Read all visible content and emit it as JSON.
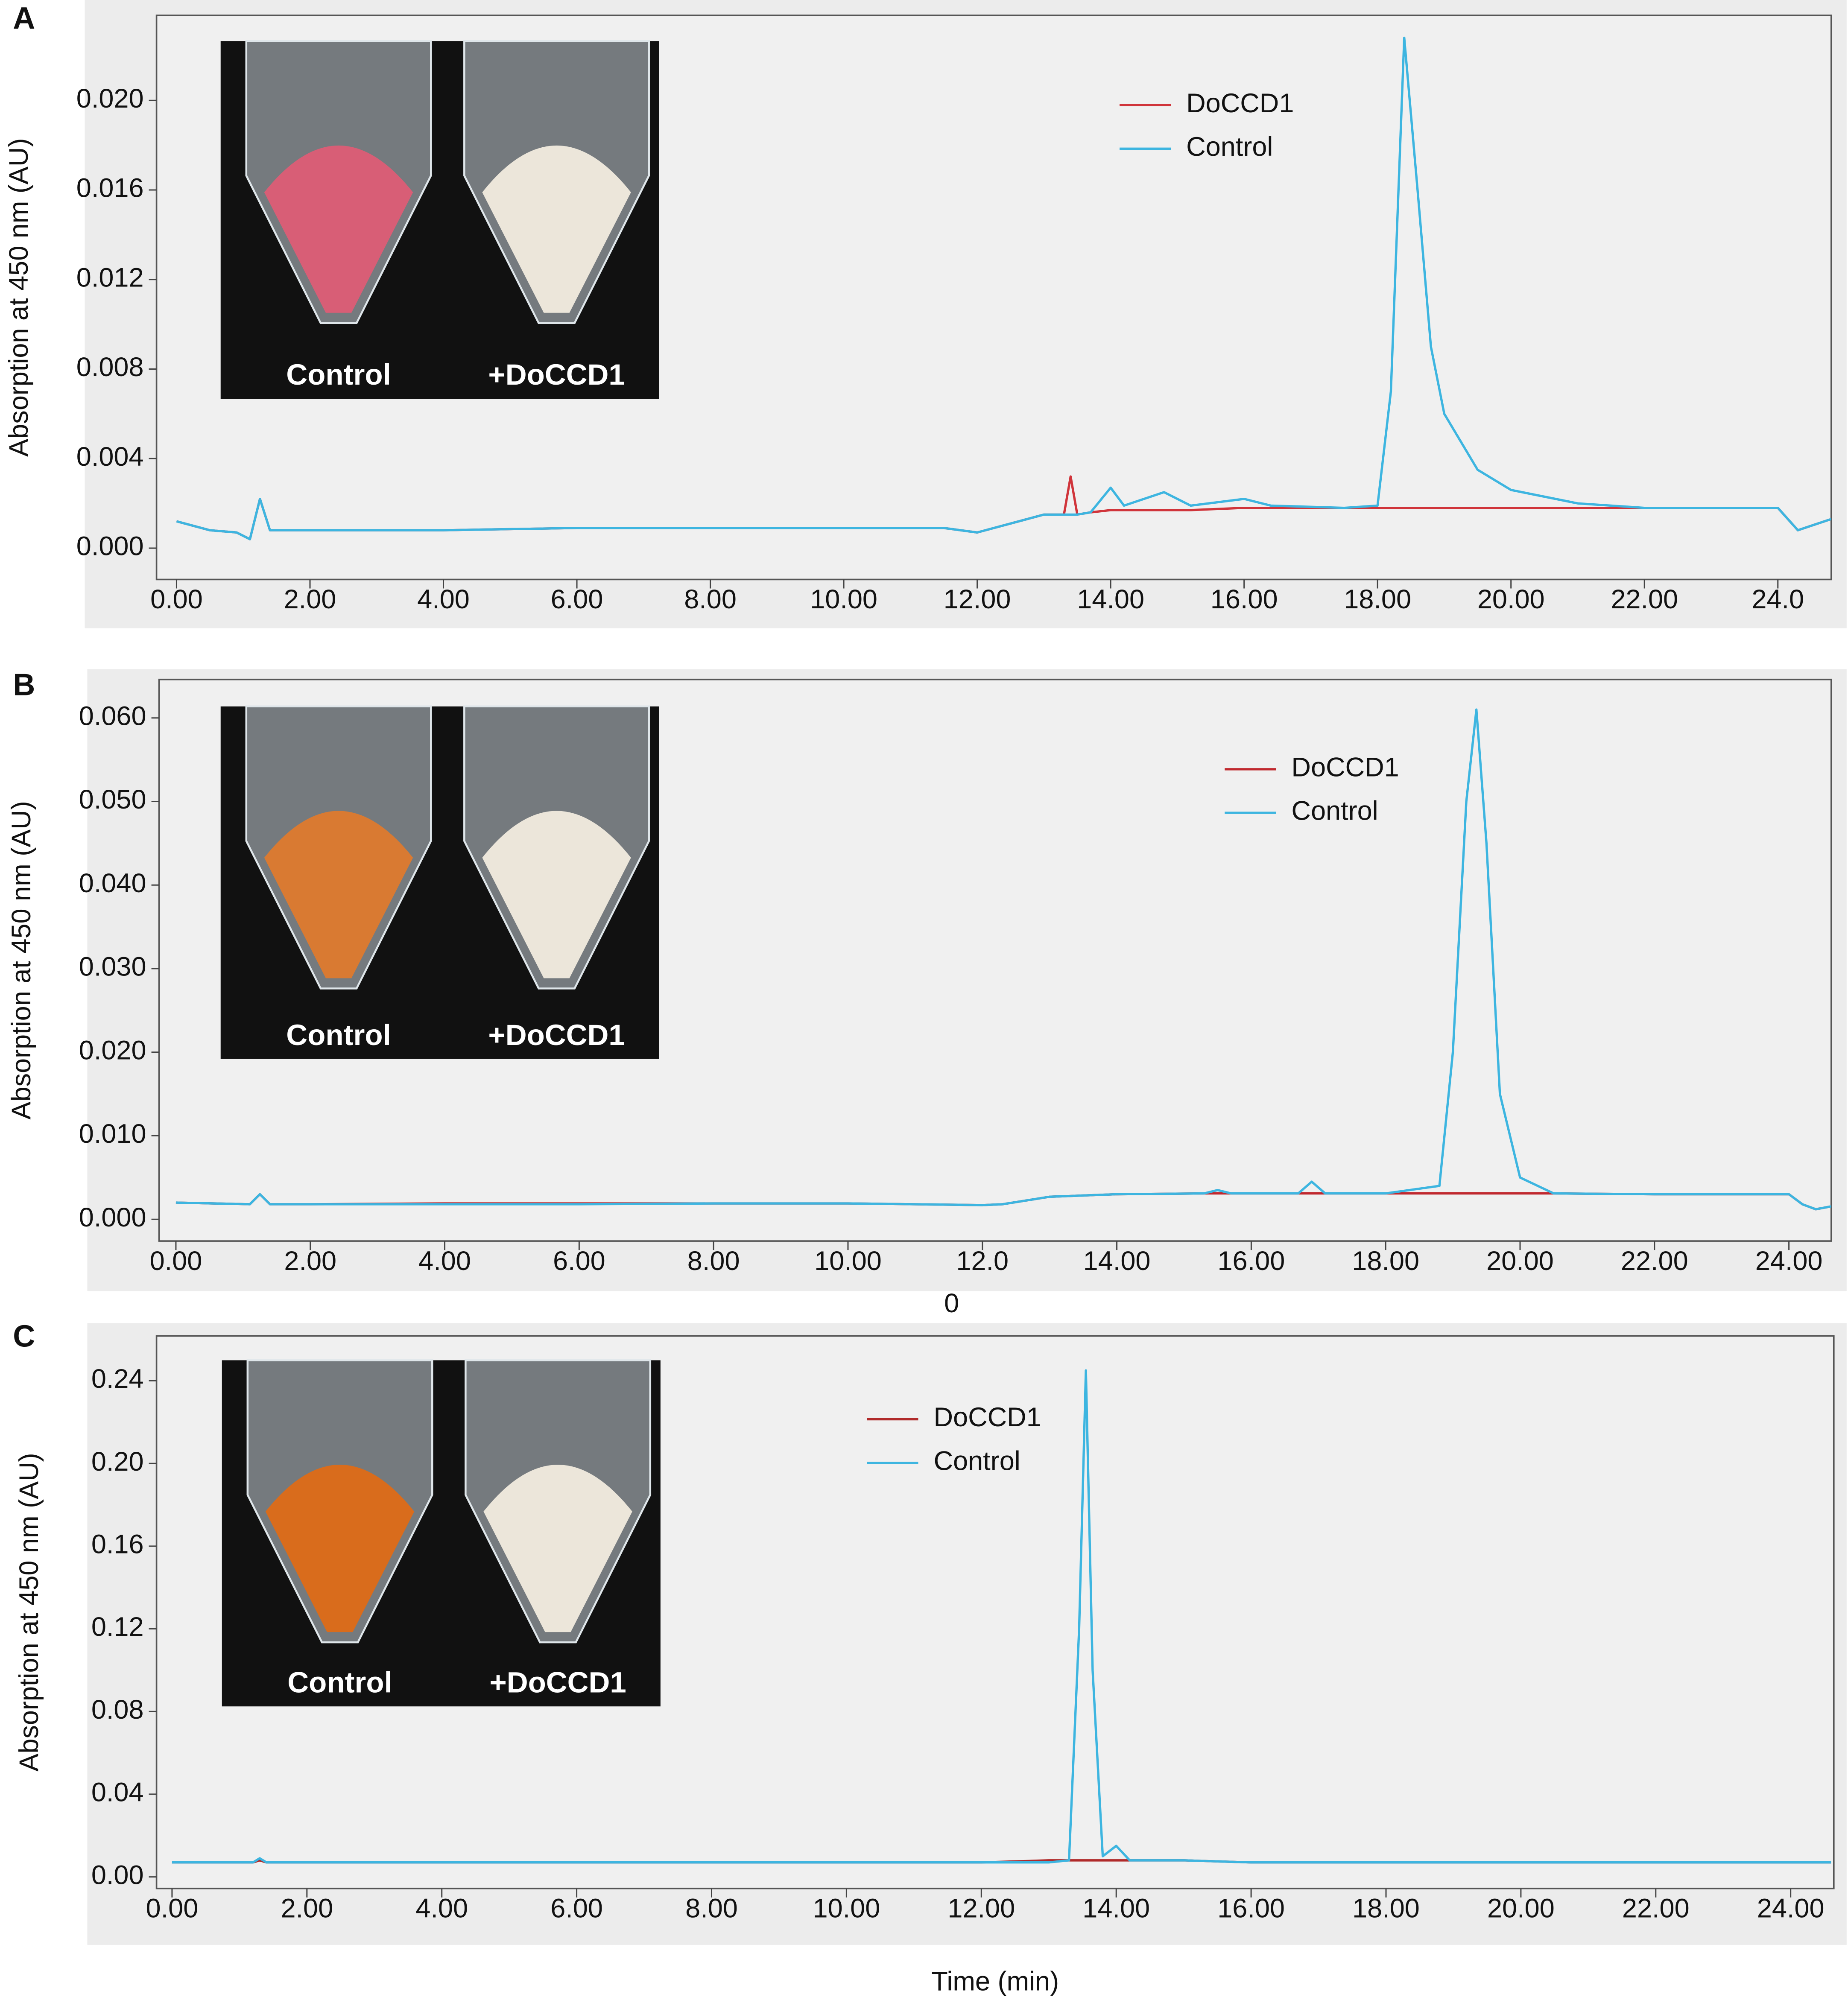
{
  "chart_data": [
    {
      "type": "line",
      "panel_label": "A",
      "y_label": "Absorption at 450 nm (AU)",
      "inset_labels": [
        "Control",
        "+DoCCD1"
      ],
      "xlim": [
        -0.3,
        24.8
      ],
      "ylim": [
        -0.0014,
        0.0238
      ],
      "xticks": [
        {
          "value": 0,
          "label": "0.00"
        },
        {
          "value": 2,
          "label": "2.00"
        },
        {
          "value": 4,
          "label": "4.00"
        },
        {
          "value": 6,
          "label": "6.00"
        },
        {
          "value": 8,
          "label": "8.00"
        },
        {
          "value": 10,
          "label": "10.00"
        },
        {
          "value": 12,
          "label": "12.00"
        },
        {
          "value": 14,
          "label": "14.00"
        },
        {
          "value": 16,
          "label": "16.00"
        },
        {
          "value": 18,
          "label": "18.00"
        },
        {
          "value": 20,
          "label": "20.00"
        },
        {
          "value": 22,
          "label": "22.00"
        },
        {
          "value": 24,
          "label": "24.0"
        }
      ],
      "yticks": [
        {
          "value": 0,
          "label": "0.000"
        },
        {
          "value": 0.004,
          "label": "0.004"
        },
        {
          "value": 0.008,
          "label": "0.008"
        },
        {
          "value": 0.012,
          "label": "0.012"
        },
        {
          "value": 0.016,
          "label": "0.016"
        },
        {
          "value": 0.02,
          "label": "0.020"
        }
      ],
      "x": [
        0,
        0.5,
        0.9,
        1.1,
        1.25,
        1.4,
        2,
        4,
        6,
        8,
        10,
        11.5,
        12,
        12.5,
        13,
        13.3,
        13.4,
        13.5,
        13.7,
        14.0,
        14.2,
        14.5,
        14.8,
        15.2,
        16.0,
        16.4,
        17.5,
        18.0,
        18.2,
        18.4,
        18.6,
        18.8,
        19.0,
        19.5,
        20,
        21,
        22,
        23,
        24.0,
        24.3,
        24.5,
        24.8
      ],
      "series": [
        {
          "name": "DoCCD1",
          "color": "#d0343a",
          "values": [
            0.0012,
            0.0008,
            0.0007,
            0.0004,
            0.0022,
            0.0008,
            0.0008,
            0.0008,
            0.0009,
            0.0009,
            0.0009,
            0.0009,
            0.0007,
            0.0011,
            0.0015,
            0.0015,
            0.0032,
            0.0015,
            0.0016,
            0.0017,
            0.0017,
            0.0017,
            0.0017,
            0.0017,
            0.0018,
            0.0018,
            0.0018,
            0.0018,
            0.0018,
            0.0018,
            0.0018,
            0.0018,
            0.0018,
            0.0018,
            0.0018,
            0.0018,
            0.0018,
            0.0018,
            0.0018,
            0.0008,
            0.001,
            0.0013
          ]
        },
        {
          "name": "Control",
          "color": "#3db5e0",
          "values": [
            0.0012,
            0.0008,
            0.0007,
            0.0004,
            0.0022,
            0.0008,
            0.0008,
            0.0008,
            0.0009,
            0.0009,
            0.0009,
            0.0009,
            0.0007,
            0.0011,
            0.0015,
            0.0015,
            0.0015,
            0.0015,
            0.0016,
            0.0027,
            0.0019,
            0.0022,
            0.0025,
            0.0019,
            0.0022,
            0.0019,
            0.0018,
            0.0019,
            0.007,
            0.0228,
            0.016,
            0.009,
            0.006,
            0.0035,
            0.0026,
            0.002,
            0.0018,
            0.0018,
            0.0018,
            0.0008,
            0.001,
            0.0013
          ]
        }
      ]
    },
    {
      "type": "line",
      "panel_label": "B",
      "y_label": "Absorption at 450 nm (AU)",
      "inset_labels": [
        "Control",
        "+DoCCD1"
      ],
      "annotation": "0",
      "xlim": [
        -0.25,
        24.63
      ],
      "ylim": [
        -0.0026,
        0.0646
      ],
      "xticks": [
        {
          "value": 0,
          "label": "0.00"
        },
        {
          "value": 2,
          "label": "2.00"
        },
        {
          "value": 4,
          "label": "4.00"
        },
        {
          "value": 6,
          "label": "6.00"
        },
        {
          "value": 8,
          "label": "8.00"
        },
        {
          "value": 10,
          "label": "10.00"
        },
        {
          "value": 12,
          "label": "12.0"
        },
        {
          "value": 14,
          "label": "14.00"
        },
        {
          "value": 16,
          "label": "16.00"
        },
        {
          "value": 18,
          "label": "18.00"
        },
        {
          "value": 20,
          "label": "20.00"
        },
        {
          "value": 22,
          "label": "22.00"
        },
        {
          "value": 24,
          "label": "24.00"
        }
      ],
      "yticks": [
        {
          "value": 0,
          "label": "0.000"
        },
        {
          "value": 0.01,
          "label": "0.010"
        },
        {
          "value": 0.02,
          "label": "0.020"
        },
        {
          "value": 0.03,
          "label": "0.030"
        },
        {
          "value": 0.04,
          "label": "0.040"
        },
        {
          "value": 0.05,
          "label": "0.050"
        },
        {
          "value": 0.06,
          "label": "0.060"
        }
      ],
      "x": [
        0,
        1.1,
        1.25,
        1.4,
        2,
        4,
        6,
        8,
        10,
        12,
        12.3,
        13,
        14,
        15.3,
        15.5,
        15.7,
        16.7,
        16.9,
        17.1,
        18,
        18.8,
        19.0,
        19.2,
        19.35,
        19.5,
        19.7,
        20,
        20.5,
        22,
        24,
        24.2,
        24.4,
        24.8
      ],
      "series": [
        {
          "name": "DoCCD1",
          "color": "#c0282e",
          "values": [
            0.002,
            0.0018,
            0.003,
            0.0018,
            0.0018,
            0.0019,
            0.0019,
            0.0019,
            0.0019,
            0.0017,
            0.0018,
            0.0027,
            0.003,
            0.0031,
            0.0031,
            0.0031,
            0.0031,
            0.0031,
            0.0031,
            0.0031,
            0.0031,
            0.0031,
            0.0031,
            0.0031,
            0.0031,
            0.0031,
            0.0031,
            0.0031,
            0.003,
            0.003,
            0.0018,
            0.0012,
            0.0018
          ]
        },
        {
          "name": "Control",
          "color": "#3db5e0",
          "values": [
            0.002,
            0.0018,
            0.003,
            0.0018,
            0.0018,
            0.0018,
            0.0018,
            0.0019,
            0.0019,
            0.0017,
            0.0018,
            0.0027,
            0.003,
            0.0031,
            0.0035,
            0.0031,
            0.0031,
            0.0045,
            0.0031,
            0.0031,
            0.004,
            0.02,
            0.05,
            0.061,
            0.045,
            0.015,
            0.005,
            0.0031,
            0.003,
            0.003,
            0.0018,
            0.0012,
            0.0018
          ]
        }
      ]
    },
    {
      "type": "line",
      "panel_label": "C",
      "y_label": "Absorption at 450 nm (AU)",
      "x_label": "Time (min)",
      "inset_labels": [
        "Control",
        "+DoCCD1"
      ],
      "xlim": [
        -0.23,
        24.64
      ],
      "ylim": [
        -0.0056,
        0.2617
      ],
      "xticks": [
        {
          "value": 0,
          "label": "0.00"
        },
        {
          "value": 2,
          "label": "2.00"
        },
        {
          "value": 4,
          "label": "4.00"
        },
        {
          "value": 6,
          "label": "6.00"
        },
        {
          "value": 8,
          "label": "8.00"
        },
        {
          "value": 10,
          "label": "10.00"
        },
        {
          "value": 12,
          "label": "12.00"
        },
        {
          "value": 14,
          "label": "14.00"
        },
        {
          "value": 16,
          "label": "16.00"
        },
        {
          "value": 18,
          "label": "18.00"
        },
        {
          "value": 20,
          "label": "20.00"
        },
        {
          "value": 22,
          "label": "22.00"
        },
        {
          "value": 24,
          "label": "24.00"
        }
      ],
      "yticks": [
        {
          "value": 0,
          "label": "0.00"
        },
        {
          "value": 0.04,
          "label": "0.04"
        },
        {
          "value": 0.08,
          "label": "0.08"
        },
        {
          "value": 0.12,
          "label": "0.12"
        },
        {
          "value": 0.16,
          "label": "0.16"
        },
        {
          "value": 0.2,
          "label": "0.20"
        },
        {
          "value": 0.24,
          "label": "0.24"
        }
      ],
      "x": [
        0,
        1.2,
        1.3,
        1.4,
        4,
        8,
        12,
        13.0,
        13.3,
        13.45,
        13.55,
        13.65,
        13.8,
        14.0,
        14.2,
        15.0,
        16,
        20,
        24,
        24.6
      ],
      "series": [
        {
          "name": "DoCCD1",
          "color": "#b02a2a",
          "values": [
            0.007,
            0.007,
            0.008,
            0.007,
            0.007,
            0.007,
            0.007,
            0.008,
            0.008,
            0.008,
            0.008,
            0.008,
            0.008,
            0.008,
            0.008,
            0.008,
            0.007,
            0.007,
            0.007,
            0.007
          ]
        },
        {
          "name": "Control",
          "color": "#3db5e0",
          "values": [
            0.007,
            0.007,
            0.009,
            0.007,
            0.007,
            0.007,
            0.007,
            0.007,
            0.008,
            0.12,
            0.245,
            0.1,
            0.01,
            0.015,
            0.008,
            0.008,
            0.007,
            0.007,
            0.007,
            0.007
          ]
        }
      ]
    }
  ]
}
